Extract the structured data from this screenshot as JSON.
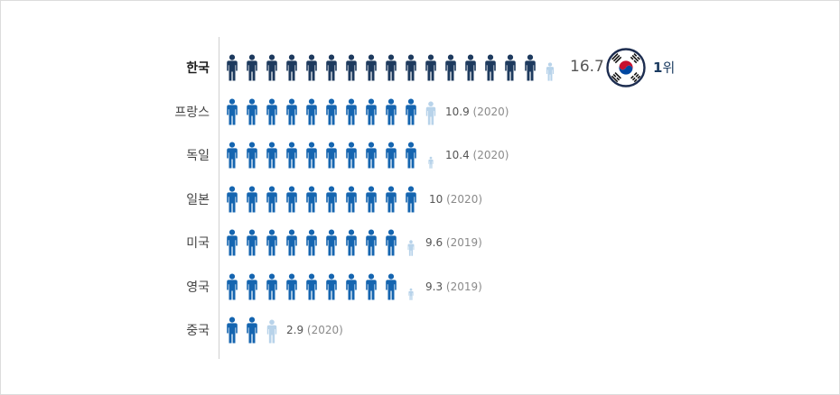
{
  "chart_data": {
    "type": "pictogram",
    "title": "",
    "highlight": {
      "country": "한국",
      "rank_number": "1",
      "rank_suffix": "위"
    },
    "rows": [
      {
        "country": "한국",
        "value": 16.7,
        "value_label": "16.7",
        "year": "",
        "color": "#1d3a5e",
        "highlight": true
      },
      {
        "country": "프랑스",
        "value": 10.9,
        "value_label": "10.9",
        "year": "(2020)",
        "color": "#1565b0",
        "highlight": false
      },
      {
        "country": "독일",
        "value": 10.4,
        "value_label": "10.4",
        "year": "(2020)",
        "color": "#1565b0",
        "highlight": false
      },
      {
        "country": "일본",
        "value": 10,
        "value_label": "10",
        "year": "(2020)",
        "color": "#1565b0",
        "highlight": false
      },
      {
        "country": "미국",
        "value": 9.6,
        "value_label": "9.6",
        "year": "(2019)",
        "color": "#1565b0",
        "highlight": false
      },
      {
        "country": "영국",
        "value": 9.3,
        "value_label": "9.3",
        "year": "(2019)",
        "color": "#1565b0",
        "highlight": false
      },
      {
        "country": "중국",
        "value": 2.9,
        "value_label": "2.9",
        "year": "(2020)",
        "color": "#1565b0",
        "highlight": false
      }
    ],
    "colors": {
      "partial": "#b8d3ea",
      "highlight_full": "#1d3a5e",
      "full": "#1565b0"
    }
  }
}
